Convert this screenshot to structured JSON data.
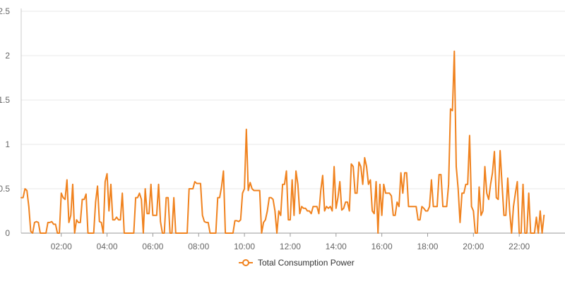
{
  "chart_data": {
    "type": "line",
    "x_start_minutes": 15,
    "x_step_minutes": 5,
    "xlim_minutes": [
      15,
      1440
    ],
    "ylim": [
      0,
      2.5
    ],
    "y_ticks": [
      {
        "value": 0,
        "label": "0"
      },
      {
        "value": 0.5,
        "label": "0.5"
      },
      {
        "value": 1,
        "label": "1"
      },
      {
        "value": 1.5,
        "label": "1.5"
      },
      {
        "value": 2,
        "label": "2"
      },
      {
        "value": 2.5,
        "label": "2.5"
      }
    ],
    "x_ticks": [
      {
        "minutes": 120,
        "label": "02:00"
      },
      {
        "minutes": 240,
        "label": "04:00"
      },
      {
        "minutes": 360,
        "label": "06:00"
      },
      {
        "minutes": 480,
        "label": "08:00"
      },
      {
        "minutes": 600,
        "label": "10:00"
      },
      {
        "minutes": 720,
        "label": "12:00"
      },
      {
        "minutes": 840,
        "label": "14:00"
      },
      {
        "minutes": 960,
        "label": "16:00"
      },
      {
        "minutes": 1080,
        "label": "18:00"
      },
      {
        "minutes": 1200,
        "label": "20:00"
      },
      {
        "minutes": 1320,
        "label": "22:00"
      }
    ],
    "grid": true,
    "legend_position": "bottom-center",
    "series": [
      {
        "name": "Total Consumption Power",
        "color": "#f0821e",
        "values": [
          0.4,
          0.4,
          0.5,
          0.48,
          0.3,
          0.02,
          0.0,
          0.12,
          0.13,
          0.12,
          0.0,
          0.0,
          0.0,
          0.0,
          0.12,
          0.12,
          0.13,
          0.1,
          0.1,
          0.0,
          0.0,
          0.45,
          0.4,
          0.38,
          0.6,
          0.12,
          0.2,
          0.55,
          0.0,
          0.15,
          0.12,
          0.12,
          0.38,
          0.38,
          0.44,
          0.0,
          0.0,
          0.0,
          0.0,
          0.35,
          0.53,
          0.13,
          0.12,
          0.0,
          0.58,
          0.67,
          0.25,
          0.55,
          0.15,
          0.15,
          0.18,
          0.15,
          0.15,
          0.45,
          0.0,
          0.0,
          0.0,
          0.0,
          0.0,
          0.0,
          0.4,
          0.4,
          0.45,
          0.38,
          0.0,
          0.5,
          0.22,
          0.22,
          0.55,
          0.2,
          0.2,
          0.2,
          0.55,
          0.13,
          0.0,
          0.0,
          0.4,
          0.4,
          0.0,
          0.0,
          0.4,
          0.0,
          0.0,
          0.0,
          0.0,
          0.0,
          0.0,
          0.0,
          0.5,
          0.5,
          0.5,
          0.58,
          0.56,
          0.56,
          0.56,
          0.2,
          0.13,
          0.12,
          0.12,
          0.0,
          0.0,
          0.0,
          0.0,
          0.4,
          0.4,
          0.52,
          0.7,
          0.0,
          0.0,
          0.0,
          0.0,
          0.0,
          0.14,
          0.14,
          0.13,
          0.15,
          0.45,
          0.5,
          1.17,
          0.48,
          0.57,
          0.5,
          0.48,
          0.48,
          0.48,
          0.48,
          0.0,
          0.12,
          0.15,
          0.25,
          0.4,
          0.4,
          0.38,
          0.25,
          0.0,
          0.25,
          0.2,
          0.55,
          0.55,
          0.7,
          0.15,
          0.15,
          0.6,
          0.2,
          0.7,
          0.55,
          0.22,
          0.3,
          0.28,
          0.28,
          0.25,
          0.25,
          0.22,
          0.3,
          0.3,
          0.3,
          0.22,
          0.48,
          0.65,
          0.25,
          0.3,
          0.28,
          0.3,
          0.25,
          0.75,
          0.28,
          0.4,
          0.58,
          0.26,
          0.28,
          0.35,
          0.35,
          0.25,
          0.78,
          0.75,
          0.45,
          0.45,
          0.8,
          0.75,
          0.55,
          0.85,
          0.75,
          0.55,
          0.6,
          0.25,
          0.22,
          0.58,
          0.0,
          0.55,
          0.2,
          0.55,
          0.45,
          0.45,
          0.45,
          0.42,
          0.2,
          0.2,
          0.35,
          0.3,
          0.68,
          0.45,
          0.68,
          0.68,
          0.3,
          0.3,
          0.3,
          0.3,
          0.3,
          0.15,
          0.15,
          0.3,
          0.28,
          0.25,
          0.25,
          0.3,
          0.6,
          0.3,
          0.3,
          0.3,
          0.66,
          0.66,
          0.3,
          0.3,
          0.3,
          0.55,
          1.4,
          1.38,
          2.05,
          0.75,
          0.5,
          0.12,
          0.45,
          0.45,
          0.55,
          0.55,
          1.1,
          0.3,
          0.25,
          0.0,
          0.0,
          0.52,
          0.2,
          0.25,
          0.75,
          0.45,
          0.38,
          0.55,
          0.68,
          0.92,
          0.4,
          0.38,
          0.93,
          0.55,
          0.2,
          0.2,
          0.62,
          0.25,
          0.0,
          0.3,
          0.45,
          0.58,
          0.0,
          0.0,
          0.55,
          0.0,
          0.0,
          0.45,
          0.0,
          0.0,
          0.0,
          0.18,
          0.0,
          0.25,
          0.0,
          0.2
        ]
      }
    ]
  }
}
